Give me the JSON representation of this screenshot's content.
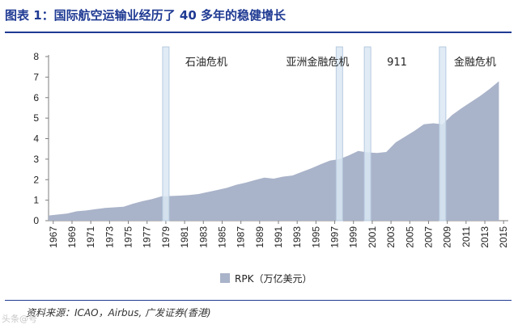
{
  "header": {
    "title": "图表 1：国际航空运输业经历了 40 多年的稳健增长"
  },
  "footer": {
    "source": "资料来源：ICAO，Airbus, 广发证券(香港)",
    "watermark": "头条@号"
  },
  "chart_data": {
    "type": "area",
    "title": "",
    "xlabel": "",
    "ylabel": "",
    "ylim": [
      0,
      8
    ],
    "y_ticks": [
      "0",
      "1",
      "2",
      "3",
      "4",
      "5",
      "6",
      "7",
      "8"
    ],
    "x_ticks": [
      "1967",
      "1969",
      "1971",
      "1973",
      "1975",
      "1977",
      "1979",
      "1981",
      "1983",
      "1985",
      "1987",
      "1989",
      "1991",
      "1993",
      "1995",
      "1997",
      "1999",
      "2001",
      "2003",
      "2005",
      "2007",
      "2009",
      "2011",
      "2013",
      "2015"
    ],
    "series": [
      {
        "name": "RPK（万亿美元）",
        "color": "#a9b3c9",
        "x": [
          1967,
          1968,
          1969,
          1970,
          1971,
          1972,
          1973,
          1974,
          1975,
          1976,
          1977,
          1978,
          1979,
          1980,
          1981,
          1982,
          1983,
          1984,
          1985,
          1986,
          1987,
          1988,
          1989,
          1990,
          1991,
          1992,
          1993,
          1994,
          1995,
          1996,
          1997,
          1998,
          1999,
          2000,
          2001,
          2002,
          2003,
          2004,
          2005,
          2006,
          2007,
          2008,
          2009,
          2010,
          2011,
          2012,
          2013,
          2014,
          2015
        ],
        "values": [
          0.25,
          0.3,
          0.35,
          0.46,
          0.5,
          0.56,
          0.62,
          0.65,
          0.68,
          0.83,
          0.95,
          1.05,
          1.18,
          1.2,
          1.22,
          1.25,
          1.3,
          1.4,
          1.5,
          1.6,
          1.75,
          1.85,
          1.98,
          2.1,
          2.05,
          2.15,
          2.2,
          2.38,
          2.55,
          2.75,
          2.93,
          3.0,
          3.18,
          3.4,
          3.33,
          3.3,
          3.35,
          3.82,
          4.1,
          4.38,
          4.7,
          4.75,
          4.7,
          5.15,
          5.48,
          5.78,
          6.08,
          6.42,
          6.8
        ]
      }
    ],
    "annotations": [
      {
        "label": "石油危机",
        "year": 1979.5
      },
      {
        "label": "亚洲金融危机",
        "year": 1998.0
      },
      {
        "label": "911",
        "year": 2001.0
      },
      {
        "label": "金融危机",
        "year": 2009.0
      }
    ],
    "legend": {
      "position": "bottom",
      "label": "RPK（万亿美元）"
    }
  }
}
